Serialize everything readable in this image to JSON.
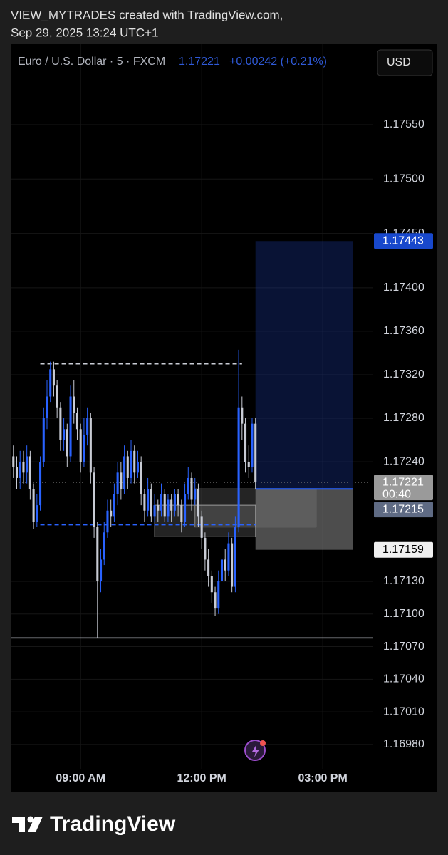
{
  "header": {
    "line1": "VIEW_MYTRADES created with TradingView.com,",
    "line2": "Sep 29, 2025 13:24 UTC+1"
  },
  "chart_data": {
    "type": "candlestick",
    "symbol": "Euro / U.S. Dollar · 5 · FXCM",
    "change": "+0.00242 (+0.21%)",
    "currency": "USD",
    "countdown": "00:40",
    "up_color": "#2962ff",
    "down_color": "#c8cbd4",
    "x": [
      440,
      445,
      450,
      455,
      460,
      465,
      470,
      475,
      480,
      485,
      490,
      495,
      500,
      505,
      510,
      515,
      520,
      525,
      530,
      535,
      540,
      545,
      550,
      555,
      560,
      565,
      570,
      575,
      580,
      585,
      590,
      595,
      600,
      605,
      610,
      615,
      620,
      625,
      630,
      635,
      640,
      645,
      650,
      655,
      660,
      665,
      670,
      675,
      680,
      685,
      690,
      695,
      700,
      705,
      710,
      715,
      720,
      725,
      730,
      735,
      740,
      745,
      750,
      755,
      760,
      765,
      770,
      775,
      780,
      785,
      790,
      795,
      800
    ],
    "open": [
      1.17245,
      1.17235,
      1.17225,
      1.1724,
      1.1723,
      1.17245,
      1.17215,
      1.17185,
      1.172,
      1.1724,
      1.1728,
      1.173,
      1.17325,
      1.1731,
      1.1729,
      1.1726,
      1.1727,
      1.17245,
      1.173,
      1.17285,
      1.1727,
      1.1724,
      1.17265,
      1.1728,
      1.1723,
      1.1718,
      1.1713,
      1.1715,
      1.17175,
      1.17195,
      1.1719,
      1.1721,
      1.1723,
      1.17215,
      1.17245,
      1.17225,
      1.1725,
      1.1723,
      1.1724,
      1.1721,
      1.17195,
      1.17215,
      1.1719,
      1.172,
      1.17195,
      1.1721,
      1.1719,
      1.17205,
      1.17195,
      1.1721,
      1.172,
      1.17185,
      1.1721,
      1.17225,
      1.17205,
      1.17215,
      1.1719,
      1.1717,
      1.1715,
      1.17135,
      1.1712,
      1.17105,
      1.1713,
      1.1715,
      1.1714,
      1.17165,
      1.17125,
      1.1718,
      1.1729,
      1.17275,
      1.1724,
      1.17235,
      1.17275
    ],
    "high": [
      1.17255,
      1.17245,
      1.1725,
      1.1725,
      1.17255,
      1.1725,
      1.1722,
      1.1721,
      1.17245,
      1.1729,
      1.17315,
      1.17332,
      1.17332,
      1.17315,
      1.17295,
      1.1728,
      1.17275,
      1.1731,
      1.17315,
      1.1729,
      1.17275,
      1.1728,
      1.1729,
      1.17285,
      1.17235,
      1.17185,
      1.1716,
      1.17185,
      1.17205,
      1.17205,
      1.1722,
      1.1724,
      1.1724,
      1.17255,
      1.1725,
      1.1726,
      1.17255,
      1.1725,
      1.17245,
      1.17215,
      1.17225,
      1.1722,
      1.1721,
      1.17205,
      1.1722,
      1.17215,
      1.1721,
      1.1721,
      1.17215,
      1.17215,
      1.17205,
      1.1722,
      1.17235,
      1.1723,
      1.17225,
      1.1722,
      1.17195,
      1.17175,
      1.1716,
      1.1714,
      1.17125,
      1.1714,
      1.1716,
      1.1716,
      1.17175,
      1.1717,
      1.1719,
      1.17343,
      1.173,
      1.1728,
      1.17255,
      1.1728,
      1.1728
    ],
    "low": [
      1.17225,
      1.17215,
      1.17215,
      1.1722,
      1.1722,
      1.17205,
      1.17178,
      1.1718,
      1.17195,
      1.17235,
      1.1727,
      1.17295,
      1.173,
      1.1728,
      1.1725,
      1.1725,
      1.17235,
      1.1724,
      1.17275,
      1.1726,
      1.1723,
      1.17235,
      1.17255,
      1.1722,
      1.1717,
      1.17078,
      1.1712,
      1.17145,
      1.1717,
      1.1718,
      1.17185,
      1.172,
      1.17205,
      1.1721,
      1.17215,
      1.1722,
      1.1722,
      1.17225,
      1.172,
      1.17185,
      1.1719,
      1.17185,
      1.17185,
      1.17185,
      1.1719,
      1.17185,
      1.17185,
      1.17185,
      1.1719,
      1.1719,
      1.17175,
      1.1718,
      1.17205,
      1.17195,
      1.172,
      1.1718,
      1.1716,
      1.1714,
      1.17125,
      1.1711,
      1.17098,
      1.171,
      1.17125,
      1.1713,
      1.17135,
      1.1712,
      1.1712,
      1.17175,
      1.1726,
      1.1723,
      1.17225,
      1.1723,
      1.17215
    ],
    "close": [
      1.17235,
      1.17225,
      1.1724,
      1.1723,
      1.17245,
      1.17215,
      1.17185,
      1.172,
      1.1724,
      1.1728,
      1.173,
      1.17325,
      1.1731,
      1.1729,
      1.1726,
      1.1727,
      1.17245,
      1.173,
      1.17285,
      1.1727,
      1.1724,
      1.17265,
      1.1728,
      1.1723,
      1.1718,
      1.1713,
      1.1715,
      1.17175,
      1.17195,
      1.1719,
      1.1721,
      1.1723,
      1.17215,
      1.17245,
      1.17225,
      1.1725,
      1.1723,
      1.1724,
      1.1721,
      1.17195,
      1.17215,
      1.1719,
      1.172,
      1.17195,
      1.1721,
      1.1719,
      1.17205,
      1.17195,
      1.1721,
      1.172,
      1.17185,
      1.1721,
      1.17225,
      1.17205,
      1.17215,
      1.1719,
      1.1717,
      1.1715,
      1.17135,
      1.1712,
      1.17105,
      1.1713,
      1.1715,
      1.1714,
      1.17165,
      1.17125,
      1.1718,
      1.1729,
      1.17275,
      1.1724,
      1.17235,
      1.17275,
      1.17221
    ],
    "xlim": [
      436,
      974
    ],
    "xticks": [
      {
        "value": 540,
        "label": "09:00 AM"
      },
      {
        "value": 720,
        "label": "12:00 PM"
      },
      {
        "value": 900,
        "label": "03:00 PM"
      }
    ],
    "ylim": [
      1.16957,
      1.17624
    ],
    "yticks": [
      {
        "value": 1.1755,
        "label": "1.17550"
      },
      {
        "value": 1.175,
        "label": "1.17500"
      },
      {
        "value": 1.1745,
        "label": "1.17450"
      },
      {
        "value": 1.174,
        "label": "1.17400"
      },
      {
        "value": 1.1736,
        "label": "1.17360"
      },
      {
        "value": 1.1732,
        "label": "1.17320"
      },
      {
        "value": 1.1728,
        "label": "1.17280"
      },
      {
        "value": 1.1724,
        "label": "1.17240"
      },
      {
        "value": 1.1713,
        "label": "1.17130"
      },
      {
        "value": 1.171,
        "label": "1.17100"
      },
      {
        "value": 1.1707,
        "label": "1.17070"
      },
      {
        "value": 1.1704,
        "label": "1.17040"
      },
      {
        "value": 1.1701,
        "label": "1.17010"
      },
      {
        "value": 1.1698,
        "label": "1.16980"
      }
    ],
    "grid": true,
    "position": {
      "entry": 1.17215,
      "target": 1.17443,
      "stop": 1.17159,
      "x": [
        800,
        945
      ]
    },
    "hlines": [
      {
        "price": 1.1733,
        "x": [
          480,
          780
        ],
        "style": "dashed",
        "color": "#c8cbd4"
      },
      {
        "price": 1.17182,
        "x": [
          480,
          800
        ],
        "style": "dashed",
        "color": "#2962ff"
      },
      {
        "price": 1.17078,
        "x": [
          436,
          974
        ],
        "style": "solid",
        "color": "#c8cbd4"
      }
    ],
    "rects": [
      {
        "price": [
          1.172,
          1.17171
        ],
        "x": [
          650,
          800
        ]
      },
      {
        "price": [
          1.17215,
          1.1718
        ],
        "x": [
          710,
          890
        ]
      }
    ]
  },
  "footer": {
    "brand": "TradingView"
  }
}
